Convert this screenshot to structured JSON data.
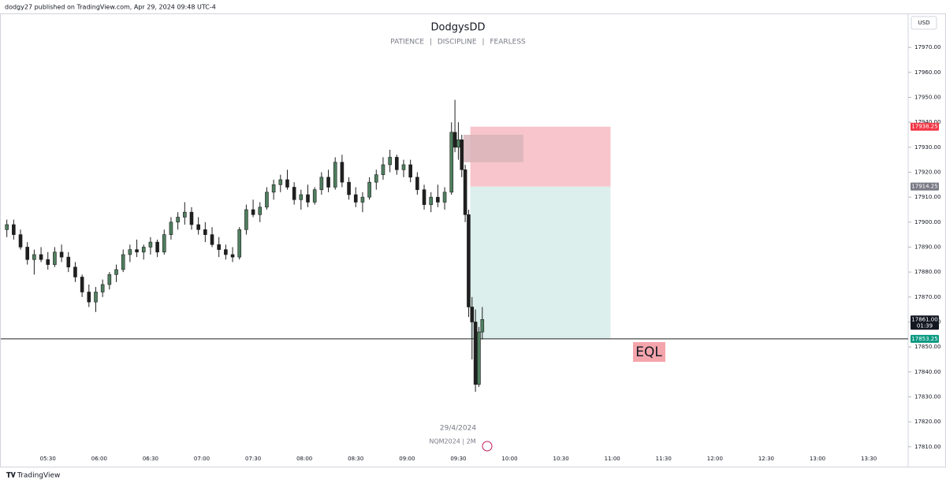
{
  "header": {
    "published": "dodgy27 published on TradingView.com, Apr 29, 2024 09:48 UTC-4",
    "logo": "TradingView"
  },
  "chart_data": {
    "type": "candlestick",
    "title": "DodgysDD",
    "subtitle": "PATIENCE | DISCIPLINE | FEARLESS",
    "currency": "USD",
    "date_label": "29/4/2024",
    "symbol_label": "NQM2024 | 2M",
    "x": [
      "05:06",
      "05:10",
      "05:14",
      "05:18",
      "05:22",
      "05:26",
      "05:30",
      "05:34",
      "05:38",
      "05:42",
      "05:46",
      "05:50",
      "05:54",
      "05:58",
      "06:02",
      "06:06",
      "06:10",
      "06:14",
      "06:18",
      "06:22",
      "06:26",
      "06:30",
      "06:34",
      "06:38",
      "06:42",
      "06:46",
      "06:50",
      "06:54",
      "06:58",
      "07:02",
      "07:06",
      "07:10",
      "07:14",
      "07:18",
      "07:22",
      "07:26",
      "07:30",
      "07:34",
      "07:38",
      "07:42",
      "07:46",
      "07:50",
      "07:54",
      "07:58",
      "08:02",
      "08:06",
      "08:10",
      "08:14",
      "08:18",
      "08:22",
      "08:26",
      "08:30",
      "08:34",
      "08:38",
      "08:42",
      "08:46",
      "08:50",
      "08:54",
      "08:58",
      "09:02",
      "09:06",
      "09:10",
      "09:14",
      "09:18",
      "09:22",
      "09:26",
      "09:28",
      "09:30",
      "09:32",
      "09:34",
      "09:36",
      "09:38",
      "09:40",
      "09:42",
      "09:44"
    ],
    "open": [
      17897,
      17899,
      17895,
      17890,
      17885,
      17887,
      17885,
      17883,
      17888,
      17886,
      17882,
      17878,
      17872,
      17868,
      17872,
      17875,
      17879,
      17881,
      17887,
      17889,
      17888,
      17890,
      17892,
      17888,
      17895,
      17900,
      17902,
      17904,
      17899,
      17897,
      17895,
      17891,
      17889,
      17887,
      17886,
      17897,
      17905,
      17903,
      17906,
      17912,
      17915,
      17917,
      17914,
      17909,
      17911,
      17908,
      17913,
      17918,
      17914,
      17924,
      17916,
      17911,
      17908,
      17910,
      17916,
      17919,
      17923,
      17926,
      17921,
      17923,
      17918,
      17913,
      17907,
      17910,
      17908,
      17912,
      17936,
      17930,
      17933,
      17921,
      17903,
      17866,
      17860,
      17835,
      17856
    ],
    "high": [
      17901,
      17901,
      17897,
      17892,
      17889,
      17890,
      17888,
      17890,
      17891,
      17888,
      17884,
      17879,
      17875,
      17874,
      17877,
      17880,
      17883,
      17889,
      17891,
      17893,
      17891,
      17894,
      17893,
      17897,
      17902,
      17904,
      17908,
      17906,
      17902,
      17900,
      17898,
      17894,
      17891,
      17890,
      17898,
      17907,
      17909,
      17908,
      17914,
      17917,
      17919,
      17921,
      17916,
      17913,
      17915,
      17914,
      17920,
      17921,
      17926,
      17927,
      17918,
      17914,
      17912,
      17918,
      17921,
      17926,
      17929,
      17927,
      17925,
      17925,
      17920,
      17915,
      17912,
      17915,
      17914,
      17940,
      17949,
      17940,
      17935,
      17923,
      17905,
      17870,
      17865,
      17858,
      17866
    ],
    "low": [
      17894,
      17893,
      17889,
      17883,
      17879,
      17884,
      17881,
      17882,
      17884,
      17880,
      17876,
      17870,
      17866,
      17864,
      17870,
      17873,
      17876,
      17880,
      17884,
      17886,
      17885,
      17887,
      17886,
      17887,
      17893,
      17897,
      17899,
      17897,
      17895,
      17892,
      17890,
      17886,
      17885,
      17884,
      17885,
      17895,
      17902,
      17900,
      17905,
      17909,
      17912,
      17913,
      17907,
      17905,
      17906,
      17907,
      17911,
      17912,
      17913,
      17914,
      17909,
      17906,
      17904,
      17909,
      17913,
      17917,
      17920,
      17919,
      17918,
      17916,
      17911,
      17905,
      17904,
      17906,
      17905,
      17911,
      17928,
      17925,
      17918,
      17900,
      17862,
      17845,
      17832,
      17834,
      17853
    ],
    "close": [
      17899,
      17895,
      17890,
      17885,
      17887,
      17885,
      17883,
      17888,
      17886,
      17882,
      17878,
      17872,
      17868,
      17872,
      17875,
      17879,
      17881,
      17887,
      17889,
      17888,
      17890,
      17892,
      17888,
      17895,
      17900,
      17902,
      17904,
      17899,
      17897,
      17895,
      17891,
      17889,
      17887,
      17886,
      17897,
      17905,
      17903,
      17906,
      17912,
      17915,
      17917,
      17914,
      17909,
      17911,
      17908,
      17913,
      17918,
      17914,
      17924,
      17916,
      17911,
      17908,
      17910,
      17916,
      17919,
      17923,
      17926,
      17921,
      17923,
      17918,
      17913,
      17907,
      17910,
      17908,
      17912,
      17936,
      17930,
      17933,
      17921,
      17903,
      17866,
      17860,
      17835,
      17856,
      17861
    ],
    "up_color": "#4f7f5f",
    "down_color": "#1f1f1f",
    "xlim": [
      "05:02",
      "13:53"
    ],
    "xticks": [
      "05:30",
      "06:00",
      "06:30",
      "07:00",
      "07:30",
      "08:00",
      "08:30",
      "09:00",
      "09:30",
      "10:00",
      "10:30",
      "11:00",
      "11:30",
      "12:00",
      "12:30",
      "13:00",
      "13:30"
    ],
    "ylim": [
      17807.4,
      17989
    ],
    "yticks": [
      {
        "value": 17810,
        "label": "17810.00"
      },
      {
        "value": 17820,
        "label": "17820.00"
      },
      {
        "value": 17830,
        "label": "17830.00"
      },
      {
        "value": 17840,
        "label": "17840.00"
      },
      {
        "value": 17850,
        "label": "17850.00"
      },
      {
        "value": 17860,
        "label": "17860.00"
      },
      {
        "value": 17870,
        "label": "17870.00"
      },
      {
        "value": 17880,
        "label": "17880.00"
      },
      {
        "value": 17890,
        "label": "17890.00"
      },
      {
        "value": 17900,
        "label": "17900.00"
      },
      {
        "value": 17910,
        "label": "17910.00"
      },
      {
        "value": 17920,
        "label": "17920.00"
      },
      {
        "value": 17930,
        "label": "17930.00"
      },
      {
        "value": 17940,
        "label": "17940.00"
      },
      {
        "value": 17950,
        "label": "17950.00"
      },
      {
        "value": 17960,
        "label": "17960.00"
      },
      {
        "value": 17970,
        "label": "17970.00"
      }
    ],
    "position": {
      "start": "09:37",
      "end": "10:59",
      "stop": 17938.25,
      "entry": 17914.25,
      "target": 17853.25,
      "stop_color": "#f7c5cb",
      "target_color": "#dcefec"
    },
    "zone": {
      "start": "09:33",
      "end": "10:08",
      "top": 17935,
      "bottom": 17924,
      "color": "#d8b4b8"
    },
    "level": {
      "value": 17853.25,
      "color": "#222222"
    },
    "annotation": {
      "text": "EQL",
      "color": "#f4a5ab"
    },
    "price_labels": [
      {
        "value": 17938.25,
        "label": "17938.25",
        "color": "#f23645"
      },
      {
        "value": 17914.25,
        "label": "17914.25",
        "color": "#787b86"
      },
      {
        "value": 17861,
        "label": "17861.00",
        "countdown": "01:39",
        "color": "#131722"
      },
      {
        "value": 17853.25,
        "label": "17853.25",
        "color": "#089981"
      }
    ]
  }
}
